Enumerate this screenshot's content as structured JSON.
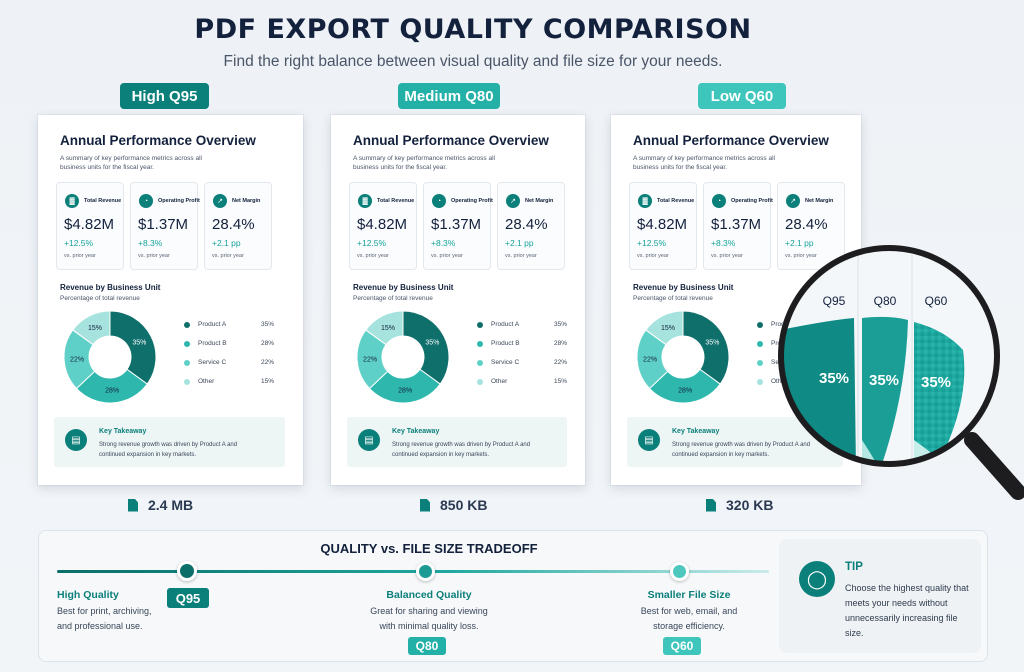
{
  "header": {
    "title": "PDF EXPORT QUALITY COMPARISON",
    "subtitle": "Find the right balance between visual quality and file size for your needs."
  },
  "colors": {
    "teal_dark": "#0b7f7a",
    "teal_mid": "#2eb8ad",
    "teal_light": "#5fd0c7",
    "teal_pale": "#a6e3de",
    "badge_high": "#0b7f7a",
    "badge_medium": "#22b0a7",
    "badge_low": "#3ec6bc"
  },
  "badges": {
    "high": "High Q95",
    "medium": "Medium Q80",
    "low": "Low Q60"
  },
  "cards": [
    {
      "quality": "Q95",
      "title": "Annual Performance Overview",
      "subtitle": "A summary of key performance metrics across all business units for the fiscal year.",
      "kpis": [
        {
          "label": "Total Revenue",
          "value": "$4.82M",
          "change": "+12.5%",
          "note": "vs. prior year",
          "icon": "bar-chart-icon"
        },
        {
          "label": "Operating Profit",
          "value": "$1.37M",
          "change": "+8.3%",
          "note": "vs. prior year",
          "icon": "pie-chart-icon"
        },
        {
          "label": "Net Margin",
          "value": "28.4%",
          "change": "+2.1 pp",
          "note": "vs. prior year",
          "icon": "trend-up-icon"
        }
      ],
      "revenue_title": "Revenue by Business Unit",
      "revenue_subtitle": "Percentage of total revenue",
      "takeaway_title": "Key Takeaway",
      "takeaway_text": "Strong revenue growth was driven by Product A and continued expansion in key markets.",
      "file_size": "2.4 MB"
    },
    {
      "quality": "Q80",
      "title": "Annual Performance Overview",
      "subtitle": "A summary of key performance metrics across all business units for the fiscal year.",
      "kpis": [
        {
          "label": "Total Revenue",
          "value": "$4.82M",
          "change": "+12.5%",
          "note": "vs. prior year",
          "icon": "bar-chart-icon"
        },
        {
          "label": "Operating Profit",
          "value": "$1.37M",
          "change": "+8.3%",
          "note": "vs. prior year",
          "icon": "pie-chart-icon"
        },
        {
          "label": "Net Margin",
          "value": "28.4%",
          "change": "+2.1 pp",
          "note": "vs. prior year",
          "icon": "trend-up-icon"
        }
      ],
      "revenue_title": "Revenue by Business Unit",
      "revenue_subtitle": "Percentage of total revenue",
      "takeaway_title": "Key Takeaway",
      "takeaway_text": "Strong revenue growth was driven by Product A and continued expansion in key markets.",
      "file_size": "850 KB"
    },
    {
      "quality": "Q60",
      "title": "Annual Performance Overview",
      "subtitle": "A summary of key performance metrics across all business units for the fiscal year.",
      "kpis": [
        {
          "label": "Total Revenue",
          "value": "$4.82M",
          "change": "+12.5%",
          "note": "vs. prior year",
          "icon": "bar-chart-icon"
        },
        {
          "label": "Operating Profit",
          "value": "$1.37M",
          "change": "+8.3%",
          "note": "vs. prior year",
          "icon": "pie-chart-icon"
        },
        {
          "label": "Net Margin",
          "value": "28.4%",
          "change": "+2.1 pp",
          "note": "vs. prior year",
          "icon": "trend-up-icon"
        }
      ],
      "revenue_title": "Revenue by Business Unit",
      "revenue_subtitle": "Percentage of total revenue",
      "takeaway_title": "Key Takeaway",
      "takeaway_text": "Strong revenue growth was driven by Product A and continued expansion in key markets.",
      "file_size": "320 KB"
    }
  ],
  "chart_data": {
    "type": "pie",
    "title": "Revenue by Business Unit",
    "subtitle": "Percentage of total revenue",
    "categories": [
      "Product A",
      "Product B",
      "Service C",
      "Other"
    ],
    "values": [
      35,
      28,
      22,
      15
    ],
    "labels": [
      "35%",
      "28%",
      "22%",
      "15%"
    ],
    "colors": [
      "#0e6f6b",
      "#2eb8ad",
      "#5fd0c7",
      "#a6e3de"
    ],
    "donut": true
  },
  "magnifier": {
    "labels": [
      "Q95",
      "Q80",
      "Q60"
    ],
    "value": "35%"
  },
  "tradeoff": {
    "title": "QUALITY vs. FILE SIZE TRADEOFF",
    "points": [
      {
        "label": "High Quality",
        "desc1": "Best for print, archiving,",
        "desc2": "and professional use.",
        "pill": "Q95"
      },
      {
        "label": "Balanced Quality",
        "desc1": "Great for sharing and viewing",
        "desc2": "with minimal quality loss.",
        "pill": "Q80"
      },
      {
        "label": "Smaller File Size",
        "desc1": "Best for web, email, and",
        "desc2": "storage efficiency.",
        "pill": "Q60"
      }
    ]
  },
  "tip": {
    "title": "TIP",
    "text": "Choose the highest quality that meets your needs without unnecessarily increasing file size.",
    "icon": "lightbulb-icon"
  }
}
